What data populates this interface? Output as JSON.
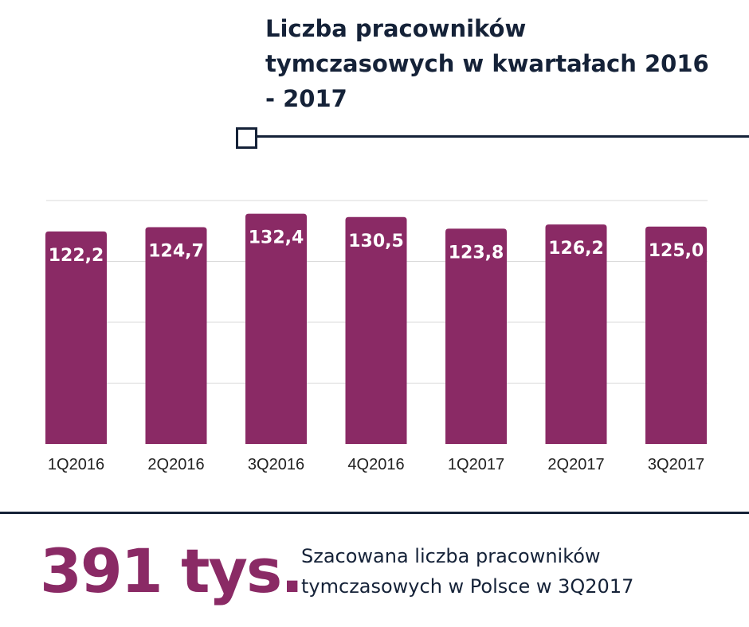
{
  "header": {
    "title": "Liczba pracowników tymczasowych w kwartałach 2016 - 2017"
  },
  "footer": {
    "big_number": "391 tys.",
    "description": "Szacowana liczba pracowników tymczasowych w Polsce w 3Q2017"
  },
  "colors": {
    "bar": "#8a2a65",
    "accent": "#152238",
    "big_number": "#8a2a65"
  },
  "chart_data": {
    "type": "bar",
    "categories": [
      "1Q2016",
      "2Q2016",
      "3Q2016",
      "4Q2016",
      "1Q2017",
      "2Q2017",
      "3Q2017"
    ],
    "values": [
      122.2,
      124.7,
      132.4,
      130.5,
      123.8,
      126.2,
      125.0
    ],
    "value_labels": [
      "122,2",
      "124,7",
      "132,4",
      "130,5",
      "123,8",
      "126,2",
      "125,0"
    ],
    "title": "Liczba pracowników tymczasowych w kwartałach 2016 - 2017",
    "xlabel": "",
    "ylabel": "",
    "ylim": [
      0,
      140
    ],
    "grid": true,
    "legend": "none"
  }
}
